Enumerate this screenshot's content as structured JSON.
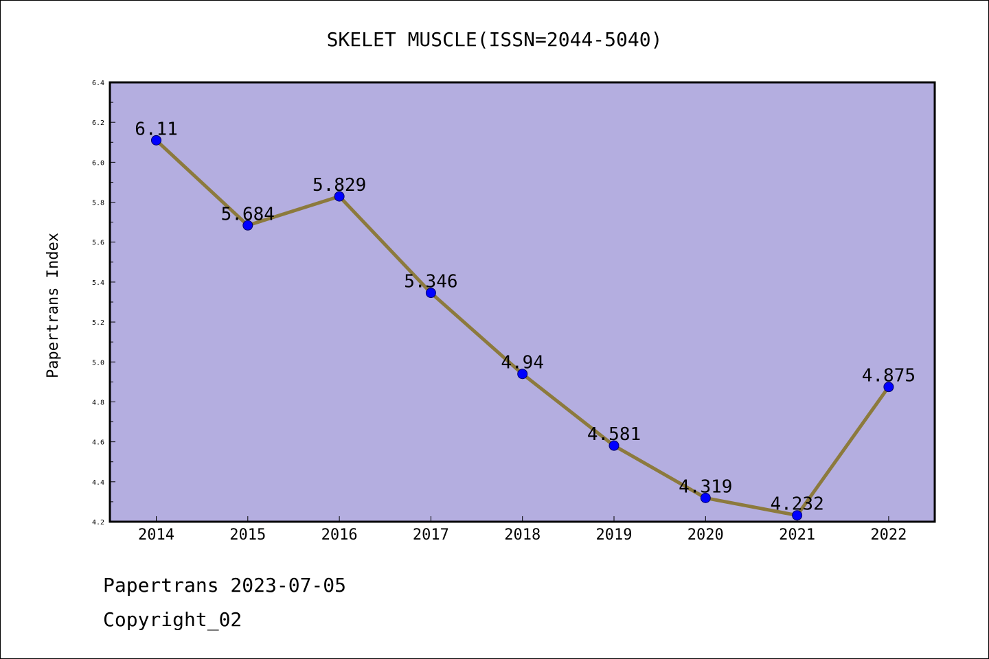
{
  "footer": {
    "line1": "Papertrans 2023-07-05",
    "line2": "Copyright_02"
  },
  "colors": {
    "plot_background": "#b4aee0",
    "line": "#8c7a3d",
    "marker": "#0000ff",
    "axes": "#000000"
  },
  "chart_data": {
    "type": "line",
    "title": "SKELET MUSCLE(ISSN=2044-5040)",
    "xlabel": "",
    "ylabel": "Papertrans Index",
    "categories": [
      "2014",
      "2015",
      "2016",
      "2017",
      "2018",
      "2019",
      "2020",
      "2021",
      "2022"
    ],
    "values": [
      6.11,
      5.684,
      5.829,
      5.346,
      4.94,
      4.581,
      4.319,
      4.232,
      4.875
    ],
    "data_labels": [
      "6.11",
      "5.684",
      "5.829",
      "5.346",
      "4.94",
      "4.581",
      "4.319",
      "4.232",
      "4.875"
    ],
    "ylim": [
      4.2,
      6.4
    ],
    "yticks": [
      "4.2",
      "4.4",
      "4.6",
      "4.8",
      "5.0",
      "5.2",
      "5.4",
      "5.6",
      "5.8",
      "6.0",
      "6.2",
      "6.4"
    ],
    "grid": false,
    "legend": "none"
  }
}
